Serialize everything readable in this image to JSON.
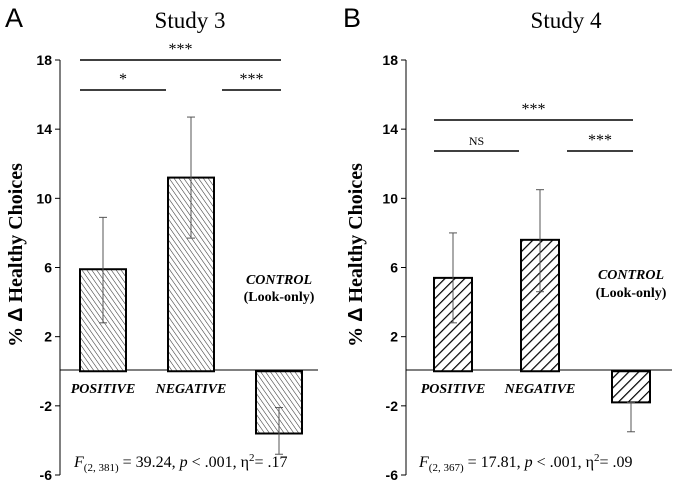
{
  "figure": {
    "ylabel_prefix": "% ",
    "ylabel_delta": "Δ",
    "ylabel_text": " Healthy Choices",
    "colors": {
      "bar_stroke": "#000000",
      "error_bar": "#555555",
      "text": "#000000"
    }
  },
  "chart_data": [
    {
      "type": "bar",
      "panel_letter": "A",
      "title": "Study 3",
      "ylabel": "% Δ Healthy Choices",
      "ylim": [
        -6,
        18
      ],
      "yticks": [
        -6,
        -2,
        2,
        6,
        10,
        14,
        18
      ],
      "ytick_labels": [
        "-6",
        "-2",
        "2",
        "6",
        "10",
        "14",
        "18"
      ],
      "hatch": "dense",
      "categories": [
        "POSITIVE",
        "NEGATIVE",
        "CONTROL"
      ],
      "category_labels": [
        "POSITIVE",
        "NEGATIVE",
        ""
      ],
      "control_label_line1": "CONTROL",
      "control_label_line2": "(Look-only)",
      "values": [
        5.9,
        11.2,
        -3.6
      ],
      "error_low": [
        2.8,
        7.7,
        -4.8
      ],
      "error_high": [
        8.9,
        14.7,
        -2.1
      ],
      "significance": [
        {
          "from": 0,
          "to": 1,
          "label": "*",
          "level": 1
        },
        {
          "from": 1,
          "to": 2,
          "label": "***",
          "level": 1
        },
        {
          "from": 0,
          "to": 2,
          "label": "***",
          "level": 2
        }
      ],
      "stat": {
        "F_label": "F",
        "df": "(2, 381)",
        "F_value": " = 39.24, ",
        "p_label": "p",
        "p_value": " < .001, η",
        "eta_sup": "2",
        "eta_value": "= .17"
      }
    },
    {
      "type": "bar",
      "panel_letter": "B",
      "title": "Study 4",
      "ylabel": "% Δ Healthy Choices",
      "ylim": [
        -6,
        18
      ],
      "yticks": [
        -6,
        -2,
        2,
        6,
        10,
        14,
        18
      ],
      "ytick_labels": [
        "-6",
        "-2",
        "2",
        "6",
        "10",
        "14",
        "18"
      ],
      "hatch": "wide",
      "categories": [
        "POSITIVE",
        "NEGATIVE",
        "CONTROL"
      ],
      "category_labels": [
        "POSITIVE",
        "NEGATIVE",
        ""
      ],
      "control_label_line1": "CONTROL",
      "control_label_line2": "(Look-only)",
      "values": [
        5.4,
        7.6,
        -1.8
      ],
      "error_low": [
        2.8,
        4.6,
        -3.5
      ],
      "error_high": [
        8.0,
        10.5,
        -1.8
      ],
      "significance": [
        {
          "from": 0,
          "to": 1,
          "label": "NS",
          "level": 1
        },
        {
          "from": 1,
          "to": 2,
          "label": "***",
          "level": 1
        },
        {
          "from": 0,
          "to": 2,
          "label": "***",
          "level": 2
        }
      ],
      "stat": {
        "F_label": "F",
        "df": "(2, 367)",
        "F_value": " = 17.81, ",
        "p_label": "p",
        "p_value": " < .001, η",
        "eta_sup": "2",
        "eta_value": "= .09"
      }
    }
  ]
}
